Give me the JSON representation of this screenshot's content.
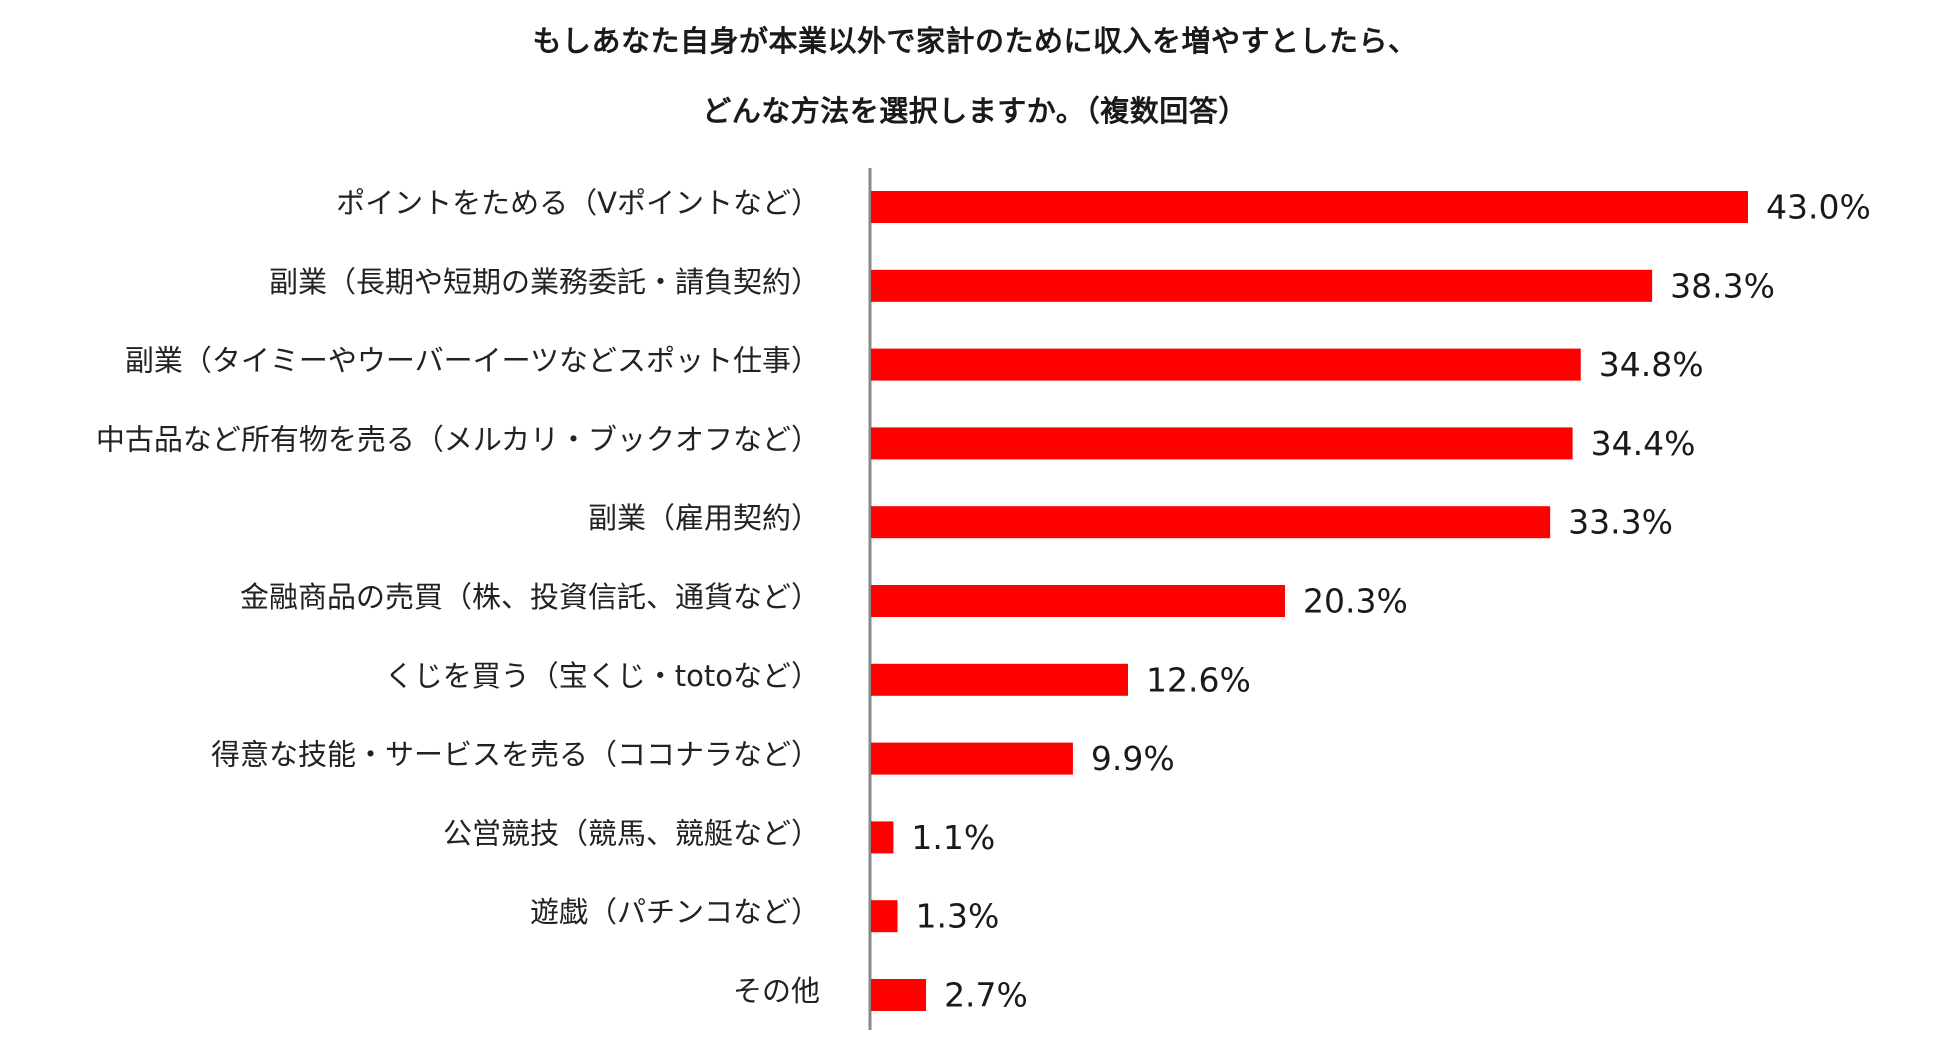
{
  "chart_data": {
    "type": "bar",
    "orientation": "horizontal",
    "title_lines": [
      "もしあなた自身が本業以外で家計のために収入を増やすとしたら、",
      "どんな方法を選択しますか。（複数回答）"
    ],
    "categories": [
      "ポイントをためる（Vポイントなど）",
      "副業（長期や短期の業務委託・請負契約）",
      "副業（タイミーやウーバーイーツなどスポット仕事）",
      "中古品など所有物を売る（メルカリ・ブックオフなど）",
      "副業（雇用契約）",
      "金融商品の売買（株、投資信託、通貨など）",
      "くじを買う（宝くじ・totoなど）",
      "得意な技能・サービスを売る（ココナラなど）",
      "公営競技（競馬、競艇など）",
      "遊戯（パチンコなど）",
      "その他"
    ],
    "values": [
      43.0,
      38.3,
      34.8,
      34.4,
      33.3,
      20.3,
      12.6,
      9.9,
      1.1,
      1.3,
      2.7
    ],
    "value_labels": [
      "43.0%",
      "38.3%",
      "34.8%",
      "34.4%",
      "33.3%",
      "20.3%",
      "12.6%",
      "9.9%",
      "1.1%",
      "1.3%",
      "2.7%"
    ],
    "xlim": [
      0,
      43.0
    ],
    "unit": "%",
    "bar_color": "#ff0000",
    "grid": false
  }
}
